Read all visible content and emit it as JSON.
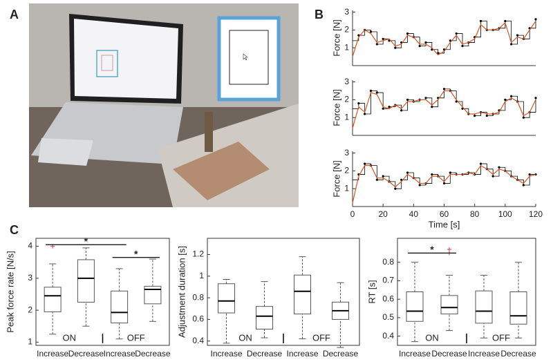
{
  "panel_labels": [
    "A",
    "B",
    "C"
  ],
  "chart_data": [
    {
      "type": "line",
      "ylabel": "Force [N]",
      "xlim": [
        0,
        120
      ],
      "ylim": [
        0,
        3.1
      ],
      "yticks": [
        1,
        2,
        3
      ],
      "x": [
        0,
        4,
        8,
        12,
        16,
        20,
        24,
        28,
        32,
        36,
        40,
        44,
        48,
        52,
        56,
        60,
        64,
        68,
        72,
        76,
        80,
        84,
        88,
        92,
        96,
        100,
        104,
        108,
        112,
        116,
        120
      ],
      "series": [
        {
          "color": "#000000",
          "step": true,
          "values": [
            1.4,
            1.7,
            2.0,
            1.9,
            1.2,
            1.5,
            1.4,
            1.0,
            1.3,
            1.8,
            1.6,
            1.1,
            1.3,
            0.9,
            0.7,
            0.9,
            1.4,
            1.8,
            1.1,
            1.3,
            1.6,
            2.5,
            2.0,
            2.0,
            2.1,
            2.5,
            1.2,
            1.7,
            1.5,
            2.1,
            2.6
          ]
        },
        {
          "color": "#d9541e",
          "step": false,
          "values": [
            0.5,
            1.6,
            2.0,
            1.8,
            1.3,
            1.4,
            1.5,
            1.1,
            1.2,
            1.7,
            1.6,
            1.2,
            1.2,
            1.0,
            0.6,
            0.8,
            1.3,
            1.7,
            1.2,
            1.3,
            1.5,
            2.3,
            2.0,
            2.0,
            2.1,
            2.4,
            1.3,
            1.6,
            1.5,
            2.0,
            2.5
          ]
        }
      ]
    },
    {
      "type": "line",
      "ylabel": "Force [N]",
      "xlim": [
        0,
        120
      ],
      "ylim": [
        0,
        3.1
      ],
      "yticks": [
        1,
        2,
        3
      ],
      "x": [
        0,
        4,
        8,
        12,
        16,
        20,
        24,
        28,
        32,
        36,
        40,
        44,
        48,
        52,
        56,
        60,
        64,
        68,
        72,
        76,
        80,
        84,
        88,
        92,
        96,
        100,
        104,
        108,
        112,
        116,
        120
      ],
      "series": [
        {
          "color": "#000000",
          "step": true,
          "values": [
            1.5,
            1.8,
            1.2,
            2.5,
            2.4,
            1.5,
            1.6,
            1.7,
            1.4,
            2.0,
            1.9,
            2.0,
            2.1,
            1.6,
            2.1,
            2.6,
            2.5,
            1.9,
            1.5,
            1.2,
            1.1,
            1.3,
            1.1,
            1.2,
            1.4,
            2.0,
            2.2,
            1.9,
            1.0,
            1.3,
            2.1
          ]
        },
        {
          "color": "#d9541e",
          "step": false,
          "values": [
            0.4,
            1.6,
            1.3,
            2.4,
            2.3,
            1.6,
            1.5,
            1.7,
            1.5,
            1.9,
            1.9,
            2.0,
            2.0,
            1.7,
            2.0,
            2.5,
            2.5,
            2.0,
            1.6,
            1.2,
            1.2,
            1.3,
            1.2,
            1.2,
            1.3,
            1.9,
            2.1,
            1.9,
            1.1,
            1.3,
            2.0
          ]
        }
      ]
    },
    {
      "type": "line",
      "ylabel": "Force [N]",
      "xlabel": "Time [s]",
      "xlim": [
        0,
        120
      ],
      "xticks": [
        0,
        20,
        40,
        60,
        80,
        100,
        120
      ],
      "ylim": [
        0,
        3.1
      ],
      "yticks": [
        1,
        2,
        3
      ],
      "x": [
        0,
        4,
        8,
        12,
        16,
        20,
        24,
        28,
        32,
        36,
        40,
        44,
        48,
        52,
        56,
        60,
        64,
        68,
        72,
        76,
        80,
        84,
        88,
        92,
        96,
        100,
        104,
        108,
        112,
        116,
        120
      ],
      "series": [
        {
          "color": "#000000",
          "step": true,
          "values": [
            1.5,
            1.8,
            2.4,
            2.3,
            1.5,
            1.7,
            1.4,
            1.0,
            1.5,
            1.9,
            1.6,
            1.2,
            1.3,
            1.8,
            1.7,
            1.3,
            1.9,
            1.8,
            1.8,
            1.9,
            1.8,
            2.4,
            2.1,
            1.7,
            2.2,
            2.0,
            1.7,
            1.5,
            1.2,
            1.8,
            1.8
          ]
        },
        {
          "color": "#d9541e",
          "step": false,
          "values": [
            0.2,
            1.7,
            2.3,
            2.3,
            1.6,
            1.6,
            1.4,
            1.1,
            1.4,
            1.8,
            1.6,
            1.3,
            1.3,
            1.7,
            1.7,
            1.4,
            1.8,
            1.8,
            1.8,
            1.9,
            1.8,
            2.3,
            2.1,
            1.8,
            2.1,
            2.0,
            1.7,
            1.5,
            1.3,
            1.7,
            1.8
          ]
        }
      ]
    },
    {
      "type": "box",
      "ylabel": "Peak force rate [N/s]",
      "ylim": [
        0.9,
        4.25
      ],
      "yticks": [
        1,
        2,
        3,
        4
      ],
      "categories": [
        "Increase",
        "Decrease",
        "Increase",
        "Decrease"
      ],
      "groups": [
        {
          "label": "ON",
          "color": "#4e7f9e"
        },
        {
          "label": "OFF",
          "color": "#000000"
        }
      ],
      "boxes": [
        {
          "whisker_low": 1.25,
          "q1": 1.95,
          "median": 2.45,
          "q3": 2.72,
          "whisker_high": 3.45,
          "outliers": [
            4.0
          ]
        },
        {
          "whisker_low": 1.5,
          "q1": 2.25,
          "median": 3.0,
          "q3": 3.58,
          "whisker_high": 3.95
        },
        {
          "whisker_low": 1.1,
          "q1": 1.6,
          "median": 1.93,
          "q3": 2.6,
          "whisker_high": 3.3
        },
        {
          "whisker_low": 1.65,
          "q1": 2.2,
          "median": 2.65,
          "q3": 2.75,
          "whisker_high": 3.6
        }
      ],
      "significance": [
        {
          "from": 0,
          "to": 2,
          "y": 4.05,
          "label": "*"
        },
        {
          "from": 2,
          "to": 3,
          "y": 3.65,
          "label": "*"
        }
      ]
    },
    {
      "type": "box",
      "ylabel": "Adjustment duration [s]",
      "ylim": [
        0.36,
        1.35
      ],
      "yticks": [
        0.4,
        0.6,
        0.8,
        1,
        1.2
      ],
      "categories": [
        "Increase",
        "Decrease",
        "Increase",
        "Decrease"
      ],
      "groups": [
        {
          "label": "ON",
          "color": "#4e7f9e"
        },
        {
          "label": "OFF",
          "color": "#000000"
        }
      ],
      "boxes": [
        {
          "whisker_low": 0.38,
          "q1": 0.66,
          "median": 0.77,
          "q3": 0.93,
          "whisker_high": 0.97
        },
        {
          "whisker_low": 0.43,
          "q1": 0.51,
          "median": 0.63,
          "q3": 0.72,
          "whisker_high": 0.95
        },
        {
          "whisker_low": 0.42,
          "q1": 0.65,
          "median": 0.86,
          "q3": 1.01,
          "whisker_high": 1.18
        },
        {
          "whisker_low": 0.34,
          "q1": 0.6,
          "median": 0.68,
          "q3": 0.76,
          "whisker_high": 0.94
        }
      ]
    },
    {
      "type": "box",
      "ylabel": "RT [s]",
      "ylim": [
        0.35,
        0.93
      ],
      "yticks": [
        0.4,
        0.5,
        0.6,
        0.7,
        0.8
      ],
      "categories": [
        "Increase",
        "Decrease",
        "Increase",
        "Decrease"
      ],
      "groups": [
        {
          "label": "ON",
          "color": "#4e7f9e"
        },
        {
          "label": "OFF",
          "color": "#000000"
        }
      ],
      "boxes": [
        {
          "whisker_low": 0.37,
          "q1": 0.48,
          "median": 0.535,
          "q3": 0.64,
          "whisker_high": 0.8
        },
        {
          "whisker_low": 0.43,
          "q1": 0.52,
          "median": 0.555,
          "q3": 0.62,
          "whisker_high": 0.73,
          "outliers": [
            0.85,
            0.87
          ]
        },
        {
          "whisker_low": 0.39,
          "q1": 0.47,
          "median": 0.535,
          "q3": 0.645,
          "whisker_high": 0.73
        },
        {
          "whisker_low": 0.39,
          "q1": 0.465,
          "median": 0.51,
          "q3": 0.64,
          "whisker_high": 0.8
        }
      ],
      "significance": [
        {
          "from": 0,
          "to": 1,
          "y": 0.85,
          "label": "*"
        }
      ]
    }
  ]
}
